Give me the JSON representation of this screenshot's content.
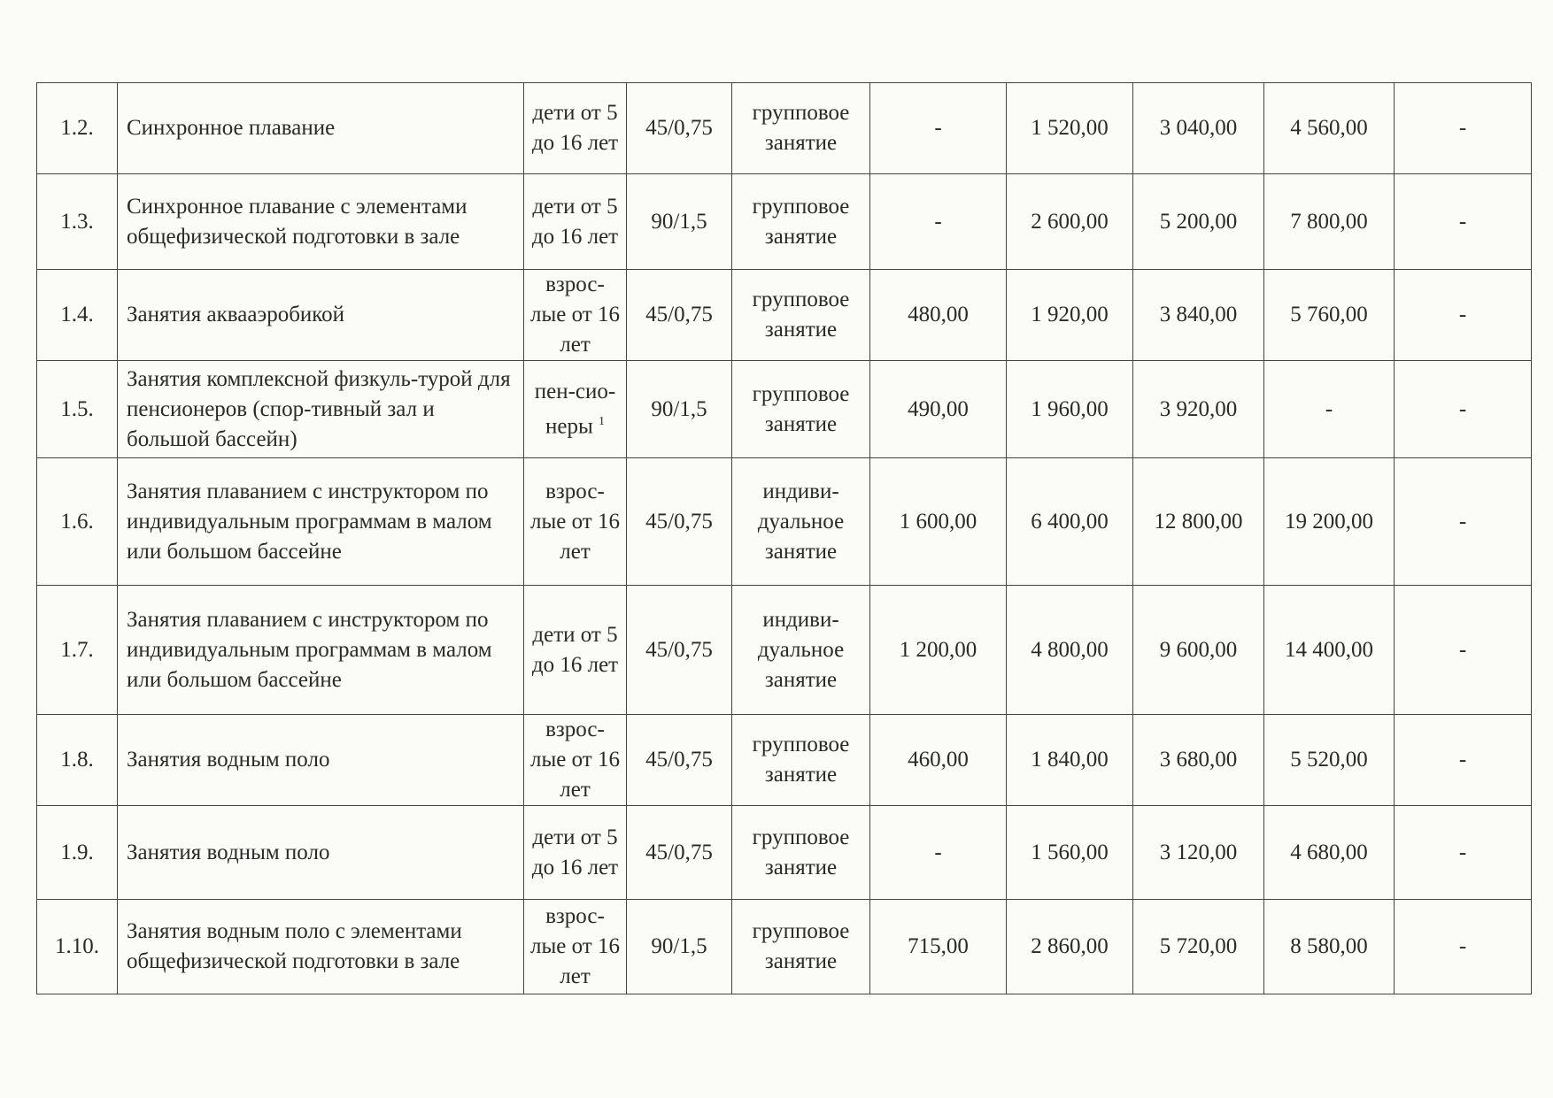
{
  "rows": [
    {
      "num": "1.2.",
      "name": "Синхронное плавание",
      "category": "дети от 5 до 16 лет",
      "duration": "45/0,75",
      "format": "групповое занятие",
      "p1": "-",
      "p2": "1 520,00",
      "p3": "3 040,00",
      "p4": "4 560,00",
      "p5": "-"
    },
    {
      "num": "1.3.",
      "name": "Синхронное плавание с элементами общефизической подготовки в зале",
      "category": "дети от 5 до 16 лет",
      "duration": "90/1,5",
      "format": "групповое занятие",
      "p1": "-",
      "p2": "2 600,00",
      "p3": "5 200,00",
      "p4": "7 800,00",
      "p5": "-"
    },
    {
      "num": "1.4.",
      "name": "Занятия аквааэробикой",
      "category": "взрос-лые от 16 лет",
      "duration": "45/0,75",
      "format": "групповое занятие",
      "p1": "480,00",
      "p2": "1 920,00",
      "p3": "3 840,00",
      "p4": "5 760,00",
      "p5": "-"
    },
    {
      "num": "1.5.",
      "name": "Занятия комплексной физкуль-турой для пенсионеров (спор-тивный зал и большой бассейн)",
      "category": "пен-сио-неры",
      "category_note": "1",
      "duration": "90/1,5",
      "format": "групповое занятие",
      "p1": "490,00",
      "p2": "1 960,00",
      "p3": "3 920,00",
      "p4": "-",
      "p5": "-"
    },
    {
      "num": "1.6.",
      "name": "Занятия плаванием с инструктором по индивидуальным программам в малом или большом бассейне",
      "category": "взрос-лые от 16 лет",
      "duration": "45/0,75",
      "format": "индиви-дуальное занятие",
      "p1": "1 600,00",
      "p2": "6 400,00",
      "p3": "12 800,00",
      "p4": "19 200,00",
      "p5": "-"
    },
    {
      "num": "1.7.",
      "name": "Занятия плаванием с инструктором по индивидуальным программам в малом или большом бассейне",
      "category": "дети от 5 до 16 лет",
      "duration": "45/0,75",
      "format": "индиви-дуальное занятие",
      "p1": "1 200,00",
      "p2": "4 800,00",
      "p3": "9 600,00",
      "p4": "14 400,00",
      "p5": "-"
    },
    {
      "num": "1.8.",
      "name": "Занятия водным поло",
      "category": "взрос-лые от 16 лет",
      "duration": "45/0,75",
      "format": "групповое занятие",
      "p1": "460,00",
      "p2": "1 840,00",
      "p3": "3 680,00",
      "p4": "5 520,00",
      "p5": "-"
    },
    {
      "num": "1.9.",
      "name": "Занятия водным поло",
      "category": "дети от 5 до 16 лет",
      "duration": "45/0,75",
      "format": "групповое занятие",
      "p1": "-",
      "p2": "1 560,00",
      "p3": "3 120,00",
      "p4": "4 680,00",
      "p5": "-"
    },
    {
      "num": "1.10.",
      "name": "Занятия водным поло с элементами общефизической подготовки в зале",
      "category": "взрос-лые от 16 лет",
      "duration": "90/1,5",
      "format": "групповое занятие",
      "p1": "715,00",
      "p2": "2 860,00",
      "p3": "5 720,00",
      "p4": "8 580,00",
      "p5": "-"
    }
  ]
}
